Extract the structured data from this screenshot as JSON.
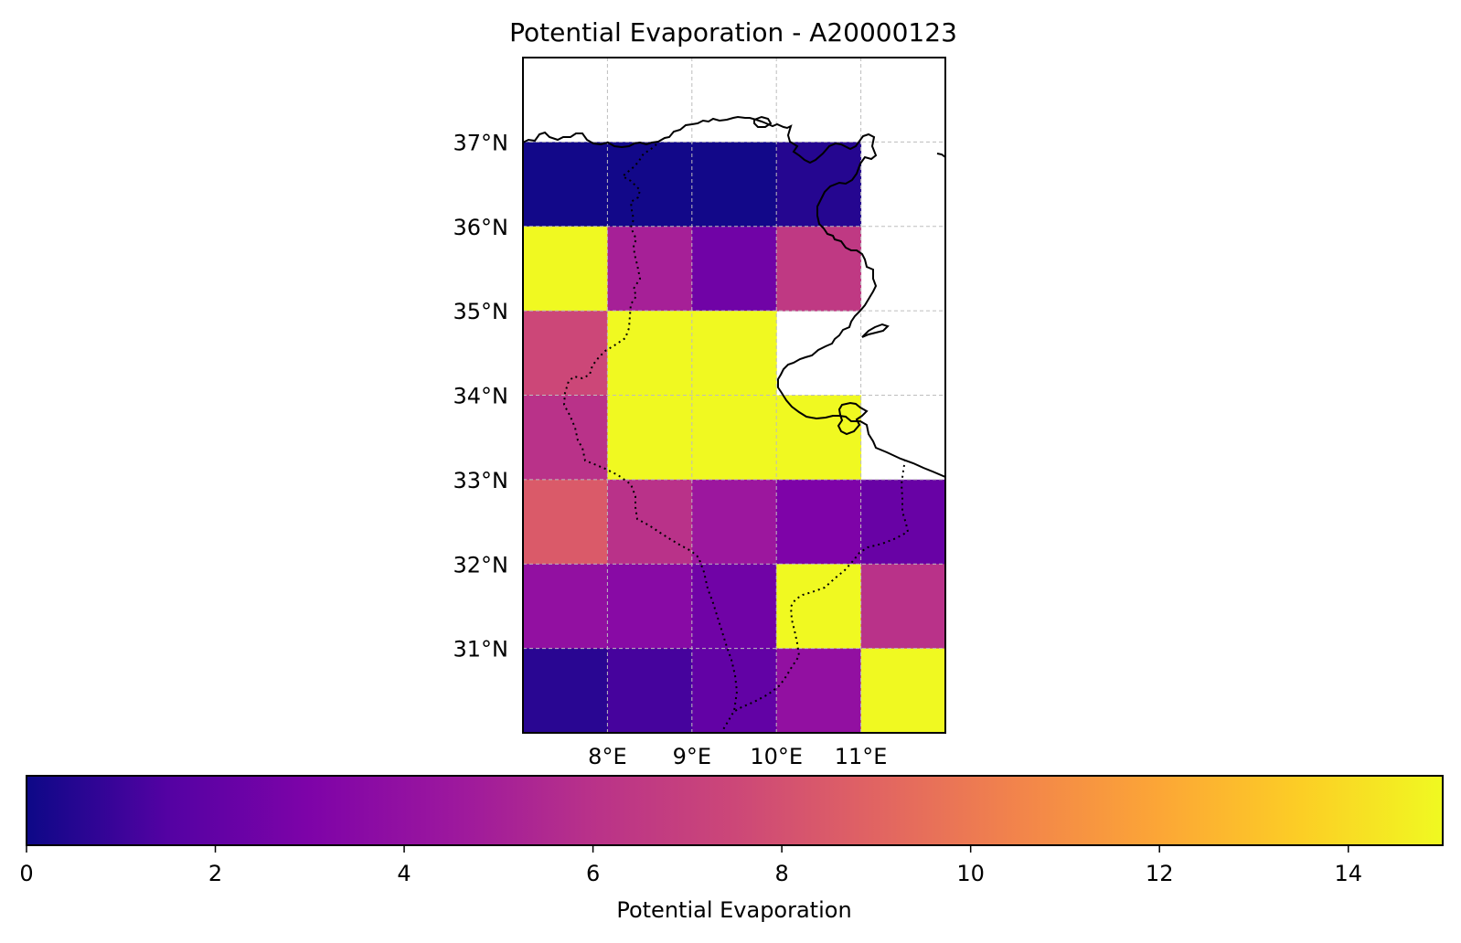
{
  "chart_data": {
    "type": "heatmap",
    "title": "Potential Evaporation - A20000123",
    "projection": "plate carree map",
    "colormap": "plasma",
    "grid": true,
    "grid_style": "dashed light gray",
    "x_range": [
      7.0,
      12.0
    ],
    "y_range": [
      30.0,
      38.0
    ],
    "x_ticks": [
      8,
      9,
      10,
      11
    ],
    "x_tick_labels": [
      "8°E",
      "9°E",
      "10°E",
      "11°E"
    ],
    "y_ticks": [
      31,
      32,
      33,
      34,
      35,
      36,
      37
    ],
    "y_tick_labels": [
      "31°N",
      "32°N",
      "33°N",
      "34°N",
      "35°N",
      "36°N",
      "37°N"
    ],
    "cell_lon_edges": [
      7,
      8,
      9,
      10,
      11,
      12
    ],
    "cell_lat_edges": [
      30,
      31,
      32,
      33,
      34,
      35,
      36,
      37
    ],
    "values_north_to_south": [
      [
        0.1,
        0.1,
        0.1,
        0.5,
        null
      ],
      [
        15.0,
        5.0,
        2.5,
        6.5,
        null
      ],
      [
        7.5,
        15.0,
        15.0,
        null,
        null
      ],
      [
        6.0,
        15.0,
        15.0,
        15.0,
        null
      ],
      [
        8.5,
        6.0,
        4.5,
        3.0,
        2.2
      ],
      [
        4.0,
        3.5,
        2.5,
        15.0,
        6.0
      ],
      [
        0.6,
        1.2,
        2.0,
        4.0,
        15.0
      ]
    ],
    "colorbar": {
      "label": "Potential Evaporation",
      "range": [
        0,
        15
      ],
      "ticks": [
        0,
        2,
        4,
        6,
        8,
        10,
        12,
        14
      ],
      "tick_labels": [
        "0",
        "2",
        "4",
        "6",
        "8",
        "10",
        "12",
        "14"
      ],
      "orientation": "horizontal",
      "placement": "bottom"
    },
    "overlays": [
      "coastlines solid black",
      "country borders dotted black"
    ]
  }
}
